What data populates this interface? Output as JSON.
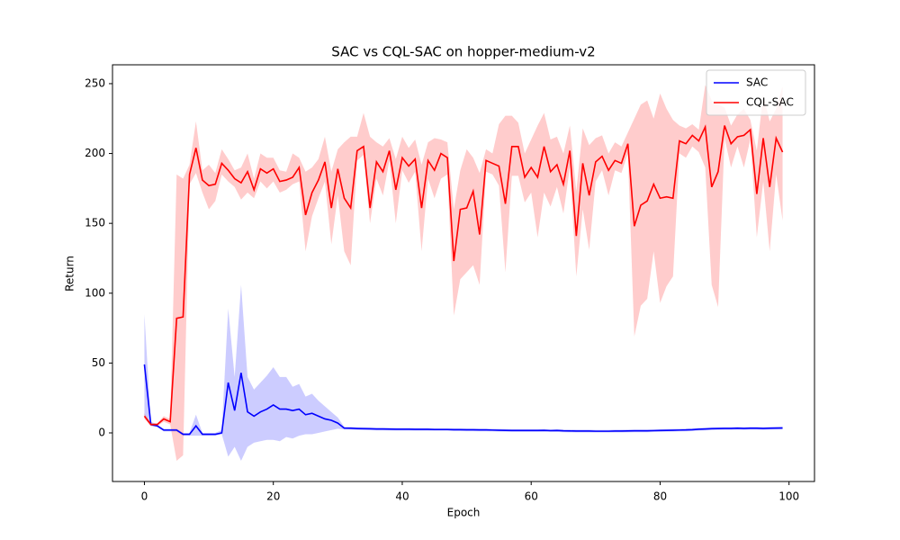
{
  "chart_data": {
    "type": "line",
    "title": "SAC vs CQL-SAC on hopper-medium-v2",
    "x_label": "Epoch",
    "y_label": "Return",
    "x": [
      0,
      1,
      2,
      3,
      4,
      5,
      6,
      7,
      8,
      9,
      10,
      11,
      12,
      13,
      14,
      15,
      16,
      17,
      18,
      19,
      20,
      21,
      22,
      23,
      24,
      25,
      26,
      27,
      28,
      29,
      30,
      31,
      32,
      33,
      34,
      35,
      36,
      37,
      38,
      39,
      40,
      41,
      42,
      43,
      44,
      45,
      46,
      47,
      48,
      49,
      50,
      51,
      52,
      53,
      54,
      55,
      56,
      57,
      58,
      59,
      60,
      61,
      62,
      63,
      64,
      65,
      66,
      67,
      68,
      69,
      70,
      71,
      72,
      73,
      74,
      75,
      76,
      77,
      78,
      79,
      80,
      81,
      82,
      83,
      84,
      85,
      86,
      87,
      88,
      89,
      90,
      91,
      92,
      93,
      94,
      95,
      96,
      97,
      98,
      99
    ],
    "xlim": [
      -4.95,
      103.95
    ],
    "xticks": [
      0,
      20,
      40,
      60,
      80,
      100
    ],
    "ylim": [
      -34.8,
      263.5
    ],
    "yticks": [
      0,
      50,
      100,
      150,
      200,
      250
    ],
    "legend": "upper right",
    "series": [
      {
        "name": "SAC",
        "color": "blue",
        "values": [
          49,
          6,
          5,
          2,
          2,
          2,
          -1,
          -1,
          5,
          -1,
          -1,
          -1,
          0,
          36,
          16,
          43,
          15,
          12,
          15,
          17,
          20,
          17,
          17,
          16,
          17,
          13,
          14,
          12,
          10,
          9,
          7,
          3.4,
          3.3,
          3.1,
          3.0,
          2.9,
          2.8,
          2.8,
          2.7,
          2.6,
          2.6,
          2.6,
          2.5,
          2.5,
          2.5,
          2.4,
          2.4,
          2.4,
          2.3,
          2.3,
          2.2,
          2.2,
          2.1,
          2.1,
          2.0,
          1.9,
          1.8,
          1.7,
          1.7,
          1.7,
          1.7,
          1.7,
          1.8,
          1.6,
          1.7,
          1.5,
          1.4,
          1.3,
          1.3,
          1.3,
          1.2,
          1.2,
          1.2,
          1.3,
          1.3,
          1.4,
          1.5,
          1.5,
          1.5,
          1.6,
          1.7,
          1.8,
          1.9,
          2.0,
          2.1,
          2.3,
          2.6,
          2.8,
          3.0,
          3.1,
          3.2,
          3.2,
          3.3,
          3.2,
          3.3,
          3.3,
          3.2,
          3.3,
          3.4,
          3.5
        ],
        "lower": [
          12,
          5,
          4,
          1,
          1,
          1,
          -2,
          -2,
          -2,
          -2,
          -2,
          -2,
          -1,
          -17,
          -10,
          -20,
          -10,
          -7,
          -6,
          -5,
          -5,
          -6,
          -3,
          -4,
          -2,
          -1,
          -1,
          0,
          1,
          2,
          3,
          2.4,
          2.3,
          2.1,
          2.0,
          1.9,
          1.8,
          1.8,
          1.7,
          1.6,
          1.6,
          1.6,
          1.5,
          1.5,
          1.5,
          1.4,
          1.4,
          1.4,
          1.3,
          1.3,
          1.2,
          1.2,
          1.1,
          1.1,
          1.0,
          0.9,
          0.8,
          0.7,
          0.7,
          0.7,
          0.7,
          0.7,
          0.8,
          0.6,
          0.7,
          0.5,
          0.4,
          0.3,
          0.3,
          0.3,
          0.2,
          0.2,
          0.2,
          0.3,
          0.3,
          0.4,
          0.5,
          0.5,
          0.5,
          0.6,
          0.7,
          0.8,
          0.9,
          1.0,
          1.1,
          1.3,
          1.6,
          1.8,
          2.0,
          2.1,
          2.2,
          2.2,
          2.3,
          2.2,
          2.3,
          2.3,
          2.2,
          2.3,
          2.4,
          2.5
        ],
        "upper": [
          85,
          8,
          6,
          3,
          3,
          3,
          0,
          0,
          13,
          0,
          0,
          0,
          2,
          89,
          40,
          106,
          40,
          31,
          36,
          41,
          47,
          40,
          40,
          33,
          35,
          26,
          28,
          23,
          19,
          15,
          11,
          4.4,
          4.3,
          4.1,
          4.0,
          3.9,
          3.8,
          3.8,
          3.7,
          3.6,
          3.6,
          3.6,
          3.5,
          3.5,
          3.5,
          3.4,
          3.4,
          3.4,
          3.3,
          3.3,
          3.2,
          3.2,
          3.1,
          3.1,
          3.0,
          2.9,
          2.8,
          2.7,
          2.7,
          2.7,
          2.7,
          2.7,
          2.8,
          2.6,
          2.7,
          2.5,
          2.4,
          2.3,
          2.3,
          2.3,
          2.2,
          2.2,
          2.2,
          2.3,
          2.3,
          2.4,
          2.5,
          2.5,
          2.5,
          2.6,
          2.7,
          2.8,
          2.9,
          3.0,
          3.1,
          3.3,
          3.6,
          3.8,
          4.0,
          4.1,
          4.2,
          4.2,
          4.3,
          4.2,
          4.3,
          4.3,
          4.2,
          4.3,
          4.4,
          4.5
        ]
      },
      {
        "name": "CQL-SAC",
        "color": "red",
        "values": [
          12,
          6,
          6,
          10,
          8,
          82,
          83,
          185,
          204,
          181,
          177,
          178,
          193,
          188,
          182,
          179,
          187,
          174,
          189,
          186,
          189,
          180,
          181,
          183,
          190,
          156,
          172,
          181,
          194,
          161,
          189,
          168,
          161,
          202,
          205,
          161,
          194,
          187,
          202,
          174,
          197,
          191,
          196,
          161,
          195,
          188,
          200,
          197,
          123,
          160,
          161,
          173,
          142,
          195,
          193,
          191,
          164,
          205,
          205,
          183,
          190,
          183,
          205,
          187,
          192,
          178,
          202,
          141,
          193,
          170,
          194,
          198,
          188,
          195,
          193,
          207,
          148,
          163,
          166,
          178,
          168,
          169,
          168,
          209,
          207,
          213,
          209,
          219,
          176,
          187,
          220,
          207,
          212,
          213,
          217,
          171,
          211,
          176,
          211,
          201
        ],
        "lower": [
          10,
          5,
          5,
          8,
          6,
          -20,
          -16,
          178,
          186,
          172,
          160,
          166,
          185,
          180,
          176,
          167,
          172,
          168,
          180,
          175,
          180,
          172,
          174,
          178,
          180,
          130,
          155,
          168,
          180,
          135,
          170,
          130,
          120,
          195,
          199,
          150,
          182,
          170,
          195,
          150,
          188,
          179,
          187,
          130,
          182,
          168,
          182,
          185,
          84,
          110,
          115,
          120,
          106,
          187,
          185,
          177,
          115,
          184,
          184,
          165,
          172,
          140,
          172,
          162,
          176,
          157,
          190,
          112,
          160,
          131,
          180,
          188,
          170,
          188,
          186,
          200,
          69,
          91,
          96,
          130,
          93,
          105,
          112,
          200,
          197,
          205,
          201,
          190,
          106,
          90,
          211,
          190,
          205,
          190,
          210,
          140,
          180,
          130,
          185,
          152
        ],
        "upper": [
          14,
          7,
          7,
          12,
          10,
          185,
          182,
          192,
          223,
          188,
          192,
          186,
          203,
          196,
          188,
          190,
          200,
          182,
          200,
          197,
          197,
          188,
          187,
          200,
          197,
          187,
          190,
          196,
          212,
          187,
          203,
          208,
          212,
          212,
          229,
          212,
          208,
          205,
          211,
          196,
          212,
          204,
          210,
          192,
          208,
          211,
          210,
          208,
          160,
          188,
          203,
          197,
          186,
          203,
          200,
          221,
          227,
          227,
          222,
          200,
          210,
          220,
          229,
          210,
          212,
          200,
          220,
          173,
          218,
          206,
          211,
          213,
          200,
          208,
          205,
          215,
          225,
          235,
          238,
          225,
          243,
          232,
          224,
          220,
          218,
          221,
          217,
          249,
          238,
          235,
          233,
          220,
          228,
          232,
          224,
          202,
          242,
          223,
          232,
          248
        ]
      }
    ]
  }
}
